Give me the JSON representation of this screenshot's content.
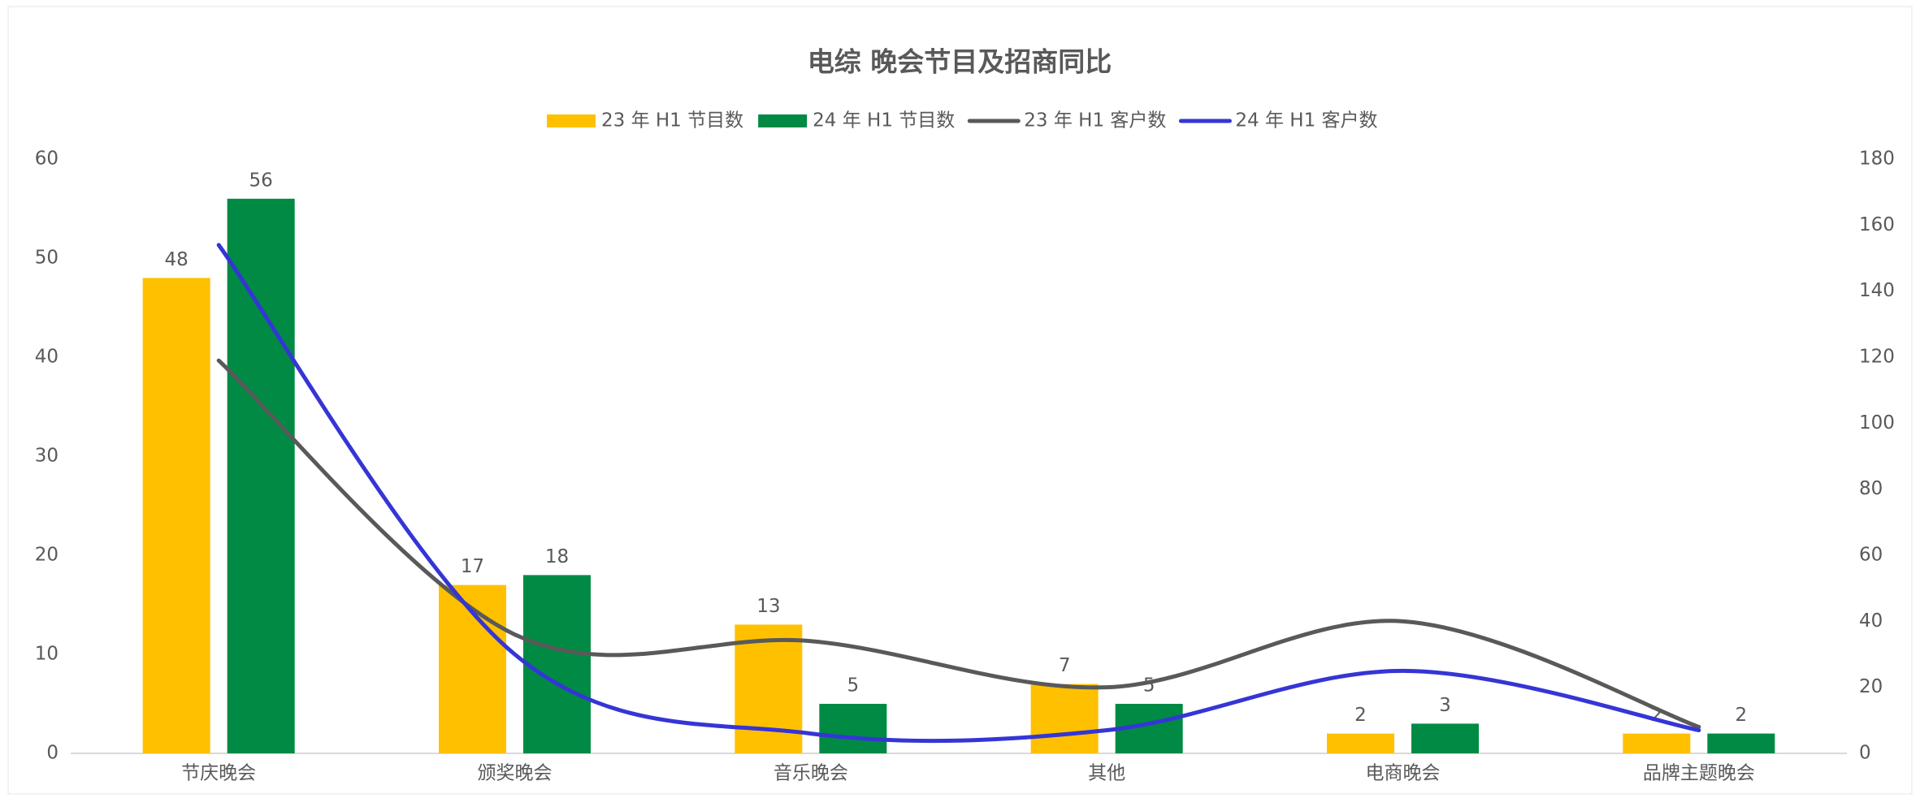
{
  "chart_data": {
    "type": "bar_line",
    "title": "电综 晚会节目及招商同比",
    "categories": [
      "节庆晚会",
      "颁奖晚会",
      "音乐晚会",
      "其他",
      "电商晚会",
      "品牌主题晚会"
    ],
    "series": [
      {
        "name": "23 年 H1 节目数",
        "color": "#ffc000",
        "type": "bar",
        "values": [
          48,
          17,
          13,
          7,
          2,
          2
        ]
      },
      {
        "name": "24 年 H1 节目数",
        "color": "#008a44",
        "type": "bar",
        "values": [
          56,
          18,
          5,
          5,
          3,
          2
        ]
      },
      {
        "name": "23 年 H1 客户数",
        "color": "#595959",
        "type": "line",
        "axis": "y2",
        "values": [
          119,
          36,
          34,
          20,
          40,
          8
        ]
      },
      {
        "name": "24 年 H1 客户数",
        "color": "#3535d6",
        "type": "line",
        "axis": "y2",
        "values": [
          154,
          30,
          6,
          7,
          25,
          7
        ]
      }
    ],
    "ylim": [
      0,
      60
    ],
    "yticks": [
      0,
      10,
      20,
      30,
      40,
      50,
      60
    ],
    "y2lim": [
      0,
      180
    ],
    "y2ticks": [
      0,
      20,
      40,
      60,
      80,
      100,
      120,
      140,
      160,
      180
    ],
    "legend": "top",
    "smooth": true
  }
}
